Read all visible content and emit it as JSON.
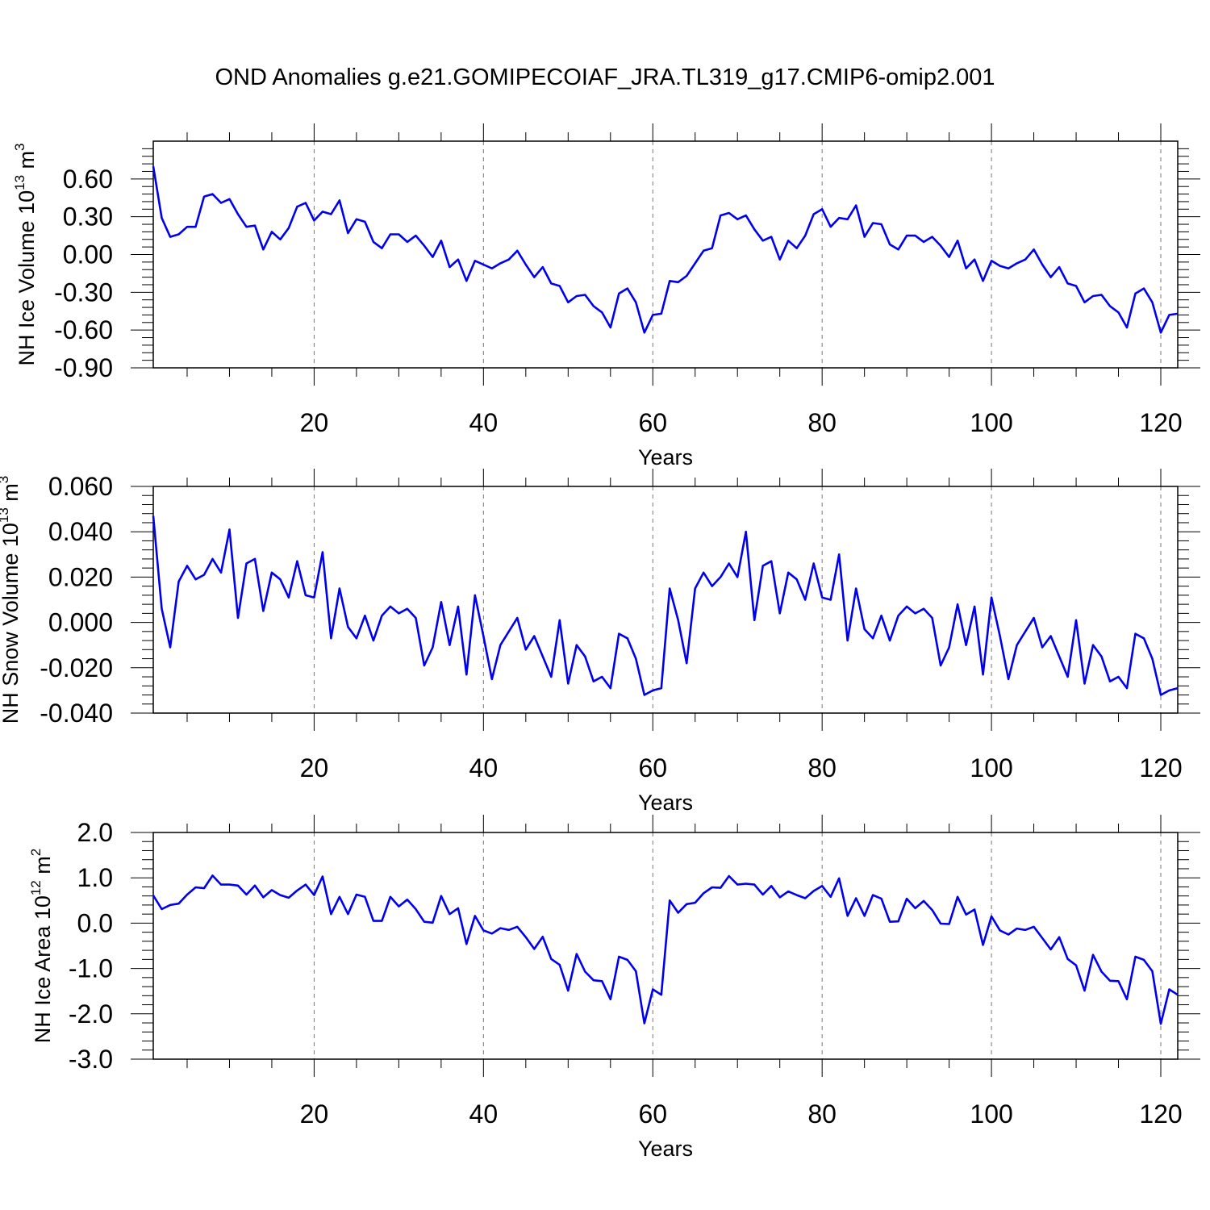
{
  "page": {
    "title": "OND Anomalies g.e21.GOMIPECOIAF_JRA.TL319_g17.CMIP6-omip2.001"
  },
  "chart_data": [
    {
      "type": "line",
      "name": "ice-volume",
      "ylabel_main": "NH Ice Volume 10",
      "ylabel_exp": "13",
      "ylabel_unit": " m",
      "ylabel_unit_exp": "3",
      "xlabel": "Years",
      "xlim": [
        1,
        122
      ],
      "ylim": [
        -0.9,
        0.9
      ],
      "xticks": [
        20,
        40,
        60,
        80,
        100,
        120
      ],
      "xtick_labels": [
        "20",
        "40",
        "60",
        "80",
        "100",
        "120"
      ],
      "yticks": [
        -0.9,
        -0.6,
        -0.3,
        0.0,
        0.3,
        0.6
      ],
      "ytick_labels": [
        "-0.90",
        "-0.60",
        "-0.30",
        "0.00",
        "0.30",
        "0.60"
      ],
      "grid": "vertical-dashed",
      "color": "#0000ee",
      "values": [
        0.7,
        0.29,
        0.14,
        0.16,
        0.22,
        0.22,
        0.46,
        0.48,
        0.41,
        0.44,
        0.32,
        0.22,
        0.23,
        0.04,
        0.18,
        0.12,
        0.21,
        0.38,
        0.41,
        0.27,
        0.34,
        0.32,
        0.43,
        0.17,
        0.28,
        0.26,
        0.1,
        0.05,
        0.16,
        0.16,
        0.1,
        0.15,
        0.07,
        -0.02,
        0.11,
        -0.1,
        -0.04,
        -0.21,
        -0.05,
        -0.08,
        -0.11,
        -0.07,
        -0.04,
        0.03,
        -0.08,
        -0.18,
        -0.1,
        -0.23,
        -0.25,
        -0.38,
        -0.33,
        -0.32,
        -0.41,
        -0.46,
        -0.58,
        -0.31,
        -0.27,
        -0.38,
        -0.62,
        -0.48,
        -0.47,
        -0.21,
        -0.22,
        -0.17,
        -0.07,
        0.03,
        0.05,
        0.31,
        0.33,
        0.28,
        0.31,
        0.2,
        0.11,
        0.14,
        -0.04,
        0.11,
        0.05,
        0.15,
        0.32,
        0.36,
        0.22,
        0.29,
        0.28,
        0.39,
        0.14,
        0.25,
        0.24,
        0.08,
        0.04,
        0.15,
        0.15,
        0.1,
        0.14,
        0.07,
        -0.02,
        0.11,
        -0.11,
        -0.04,
        -0.21,
        -0.05,
        -0.09,
        -0.11,
        -0.07,
        -0.04,
        0.04,
        -0.08,
        -0.18,
        -0.1,
        -0.23,
        -0.25,
        -0.38,
        -0.33,
        -0.32,
        -0.41,
        -0.46,
        -0.58,
        -0.31,
        -0.27,
        -0.38,
        -0.62,
        -0.48,
        -0.47
      ]
    },
    {
      "type": "line",
      "name": "snow-volume",
      "ylabel_main": "NH Snow Volume 10",
      "ylabel_exp": "13",
      "ylabel_unit": " m",
      "ylabel_unit_exp": "3",
      "xlabel": "Years",
      "xlim": [
        1,
        122
      ],
      "ylim": [
        -0.04,
        0.06
      ],
      "xticks": [
        20,
        40,
        60,
        80,
        100,
        120
      ],
      "xtick_labels": [
        "20",
        "40",
        "60",
        "80",
        "100",
        "120"
      ],
      "yticks": [
        -0.04,
        -0.02,
        0.0,
        0.02,
        0.04,
        0.06
      ],
      "ytick_labels": [
        "-0.040",
        "-0.020",
        "0.000",
        "0.020",
        "0.040",
        "0.060"
      ],
      "grid": "vertical-dashed",
      "color": "#0000ee",
      "values": [
        0.047,
        0.006,
        -0.011,
        0.018,
        0.025,
        0.019,
        0.021,
        0.028,
        0.022,
        0.041,
        0.002,
        0.026,
        0.028,
        0.005,
        0.022,
        0.019,
        0.011,
        0.027,
        0.012,
        0.011,
        0.031,
        -0.007,
        0.015,
        -0.002,
        -0.007,
        0.003,
        -0.008,
        0.003,
        0.007,
        0.004,
        0.006,
        0.002,
        -0.019,
        -0.011,
        0.009,
        -0.01,
        0.007,
        -0.023,
        0.012,
        -0.006,
        -0.025,
        -0.01,
        -0.004,
        0.002,
        -0.012,
        -0.006,
        -0.015,
        -0.024,
        0.001,
        -0.027,
        -0.01,
        -0.015,
        -0.026,
        -0.024,
        -0.029,
        -0.005,
        -0.007,
        -0.016,
        -0.032,
        -0.03,
        -0.029,
        0.015,
        0.001,
        -0.018,
        0.015,
        0.022,
        0.016,
        0.02,
        0.026,
        0.02,
        0.04,
        0.001,
        0.025,
        0.027,
        0.004,
        0.022,
        0.019,
        0.01,
        0.026,
        0.011,
        0.01,
        0.03,
        -0.008,
        0.015,
        -0.003,
        -0.007,
        0.003,
        -0.008,
        0.003,
        0.007,
        0.004,
        0.006,
        0.002,
        -0.019,
        -0.011,
        0.008,
        -0.01,
        0.007,
        -0.023,
        0.011,
        -0.006,
        -0.025,
        -0.01,
        -0.004,
        0.002,
        -0.011,
        -0.006,
        -0.015,
        -0.024,
        0.001,
        -0.027,
        -0.01,
        -0.015,
        -0.026,
        -0.024,
        -0.029,
        -0.005,
        -0.007,
        -0.016,
        -0.032,
        -0.03,
        -0.029
      ]
    },
    {
      "type": "line",
      "name": "ice-area",
      "ylabel_main": "NH Ice Area 10",
      "ylabel_exp": "12",
      "ylabel_unit": " m",
      "ylabel_unit_exp": "2",
      "xlabel": "Years",
      "xlim": [
        1,
        122
      ],
      "ylim": [
        -3.0,
        2.0
      ],
      "xticks": [
        20,
        40,
        60,
        80,
        100,
        120
      ],
      "xtick_labels": [
        "20",
        "40",
        "60",
        "80",
        "100",
        "120"
      ],
      "yticks": [
        -3.0,
        -2.0,
        -1.0,
        0.0,
        1.0,
        2.0
      ],
      "ytick_labels": [
        "-3.0",
        "-2.0",
        "-1.0",
        "0.0",
        "1.0",
        "2.0"
      ],
      "grid": "vertical-dashed",
      "color": "#0000ee",
      "values": [
        0.61,
        0.31,
        0.4,
        0.43,
        0.63,
        0.79,
        0.77,
        1.05,
        0.85,
        0.85,
        0.83,
        0.63,
        0.83,
        0.57,
        0.73,
        0.62,
        0.56,
        0.72,
        0.85,
        0.62,
        1.03,
        0.2,
        0.58,
        0.2,
        0.63,
        0.58,
        0.05,
        0.05,
        0.58,
        0.37,
        0.52,
        0.31,
        0.03,
        0.01,
        0.6,
        0.2,
        0.33,
        -0.46,
        0.16,
        -0.16,
        -0.23,
        -0.11,
        -0.15,
        -0.08,
        -0.31,
        -0.57,
        -0.3,
        -0.79,
        -0.92,
        -1.49,
        -0.68,
        -1.07,
        -1.26,
        -1.28,
        -1.68,
        -0.74,
        -0.81,
        -1.06,
        -2.21,
        -1.46,
        -1.58,
        0.5,
        0.23,
        0.42,
        0.45,
        0.66,
        0.79,
        0.78,
        1.04,
        0.85,
        0.87,
        0.85,
        0.63,
        0.82,
        0.57,
        0.7,
        0.62,
        0.55,
        0.71,
        0.82,
        0.58,
        0.99,
        0.16,
        0.55,
        0.16,
        0.62,
        0.54,
        0.03,
        0.04,
        0.54,
        0.33,
        0.49,
        0.29,
        -0.01,
        -0.02,
        0.58,
        0.19,
        0.3,
        -0.48,
        0.15,
        -0.16,
        -0.25,
        -0.12,
        -0.15,
        -0.08,
        -0.33,
        -0.58,
        -0.31,
        -0.79,
        -0.93,
        -1.49,
        -0.7,
        -1.07,
        -1.27,
        -1.28,
        -1.68,
        -0.74,
        -0.81,
        -1.06,
        -2.22,
        -1.46,
        -1.58
      ]
    }
  ]
}
